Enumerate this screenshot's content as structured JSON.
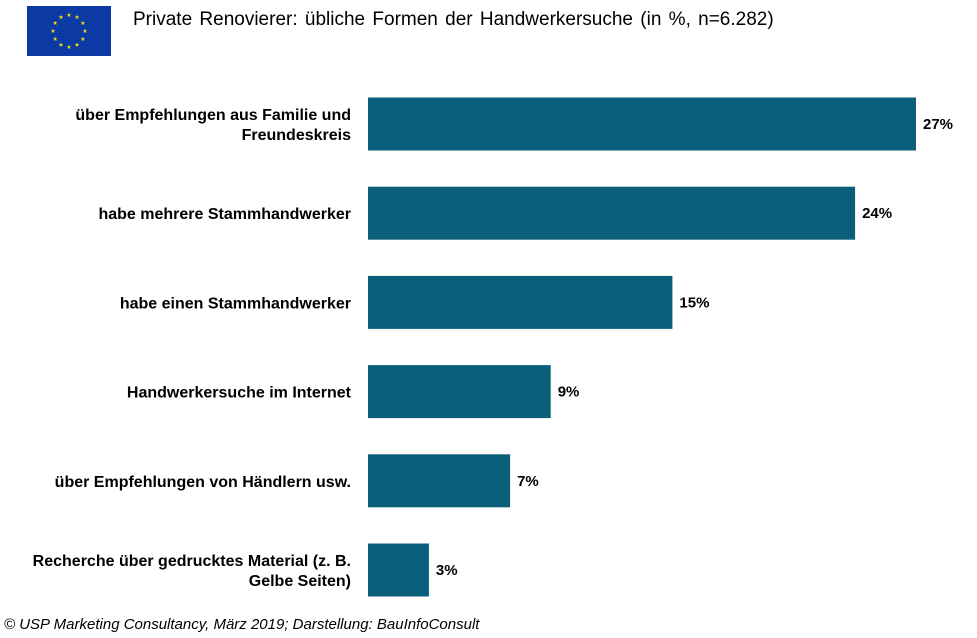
{
  "title": "Private Renovierer: übliche Formen der Handwerkersuche  (in %, n=6.282)",
  "logo": {
    "icon": "eu-flag-icon",
    "background": "#0b3aa4",
    "stars": "#f7d21a"
  },
  "source": "© USP Marketing Consultancy,  März 2019; Darstellung: BauInfoConsult",
  "colors": {
    "bar": "#0b5f7a"
  },
  "chart_data": {
    "type": "bar",
    "orientation": "horizontal",
    "title": "Private Renovierer: übliche Formen der Handwerkersuche  (in %, n=6.282)",
    "unit": "%",
    "categories": [
      [
        "über Empfehlungen aus Familie und",
        "Freundeskreis"
      ],
      [
        "habe mehrere Stammhandwerker"
      ],
      [
        "habe einen Stammhandwerker"
      ],
      [
        "Handwerkersuche im Internet"
      ],
      [
        "über Empfehlungen von Händlern usw."
      ],
      [
        "Recherche über gedrucktes Material (z. B.",
        "Gelbe Seiten)"
      ]
    ],
    "values": [
      27,
      24,
      15,
      9,
      7,
      3
    ],
    "value_labels": [
      "27%",
      "24%",
      "15%",
      "9%",
      "7%",
      "3%"
    ],
    "grid": false,
    "legend": "none"
  }
}
